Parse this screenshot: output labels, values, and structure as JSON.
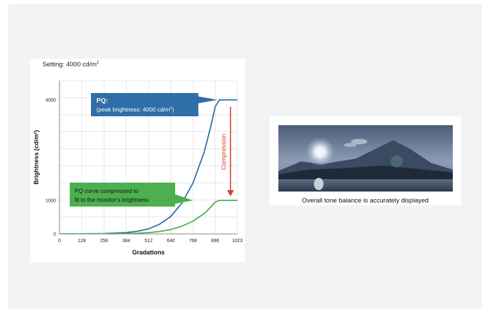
{
  "setting": {
    "prefix": "Setting: 4000 cd/m",
    "sup": "2"
  },
  "chart_data": {
    "type": "line",
    "xlabel": "Gradations",
    "ylabel": "Brightness (cd/m²)",
    "xlim": [
      0,
      1023
    ],
    "x_ticks": [
      "0",
      "128",
      "256",
      "384",
      "512",
      "640",
      "768",
      "896",
      "1023"
    ],
    "y_ticks": [
      "0",
      "1000",
      "4000"
    ],
    "grid": true,
    "series": [
      {
        "name": "PQ",
        "color": "#2f6ea6",
        "x": [
          0,
          128,
          256,
          384,
          448,
          512,
          576,
          640,
          704,
          768,
          832,
          870,
          896,
          920,
          960,
          1023
        ],
        "y": [
          0,
          2,
          10,
          40,
          80,
          150,
          290,
          520,
          920,
          1520,
          2440,
          3200,
          3800,
          4000,
          4000,
          4000
        ]
      },
      {
        "name": "PQ curve compressed to fit to the monitor's brightness",
        "color": "#4caf50",
        "x": [
          0,
          128,
          256,
          384,
          448,
          512,
          576,
          640,
          704,
          768,
          832,
          870,
          896,
          920,
          960,
          1023
        ],
        "y": [
          0,
          1,
          3,
          10,
          20,
          38,
          72,
          130,
          230,
          380,
          610,
          800,
          950,
          1000,
          1000,
          1000
        ]
      }
    ],
    "annotations": {
      "pq_title": "PQ:",
      "pq_sub_prefix": "(peak brightness: 4000 cd/m",
      "pq_sub_sup": "2",
      "pq_sub_suffix": ")",
      "green_line1": "PQ curve compressed to",
      "green_line2": "fit to the monitor's brightness",
      "compression": "Compression"
    }
  },
  "caption": "Overall tone balance is accurately displayed",
  "colors": {
    "pq_blue": "#2f6ea6",
    "compressed_green": "#4caf50",
    "arrow_red": "#d9402a"
  },
  "photo": {
    "icon": "mountain-lake-sunset-image"
  }
}
